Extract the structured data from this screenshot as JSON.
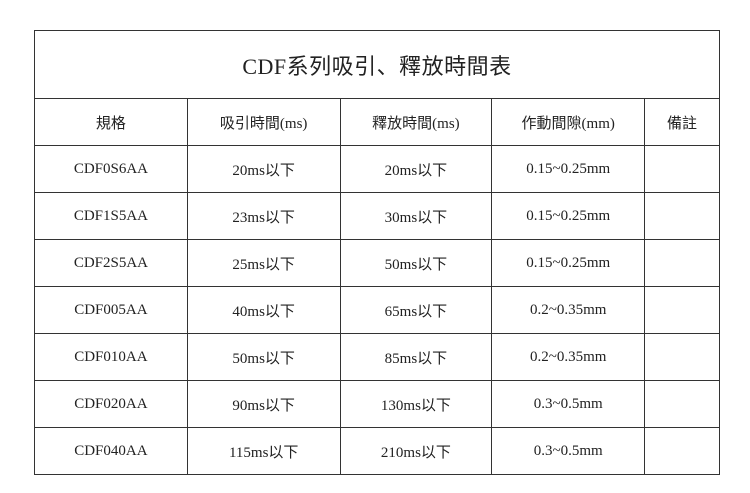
{
  "title": "CDF系列吸引、釋放時間表",
  "headers": [
    "規格",
    "吸引時間(ms)",
    "釋放時間(ms)",
    "作動間隙(mm)",
    "備註"
  ],
  "rows": [
    [
      "CDF0S6AA",
      "20ms以下",
      "20ms以下",
      "0.15~0.25mm",
      ""
    ],
    [
      "CDF1S5AA",
      "23ms以下",
      "30ms以下",
      "0.15~0.25mm",
      ""
    ],
    [
      "CDF2S5AA",
      "25ms以下",
      "50ms以下",
      "0.15~0.25mm",
      ""
    ],
    [
      "CDF005AA",
      "40ms以下",
      "65ms以下",
      "0.2~0.35mm",
      ""
    ],
    [
      "CDF010AA",
      "50ms以下",
      "85ms以下",
      "0.2~0.35mm",
      ""
    ],
    [
      "CDF020AA",
      "90ms以下",
      "130ms以下",
      "0.3~0.5mm",
      ""
    ],
    [
      "CDF040AA",
      "115ms以下",
      "210ms以下",
      "0.3~0.5mm",
      ""
    ]
  ]
}
